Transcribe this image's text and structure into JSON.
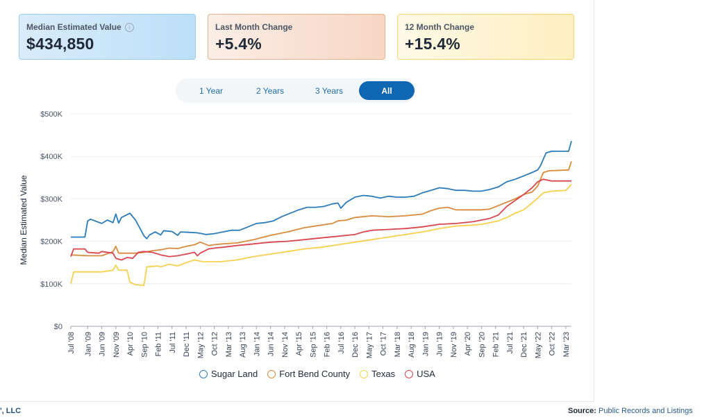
{
  "cards": [
    {
      "label": "Median Estimated Value",
      "value": "$434,850",
      "info_icon": "info-icon"
    },
    {
      "label": "Last Month Change",
      "value": "+5.4%"
    },
    {
      "label": "12 Month Change",
      "value": "+15.4%"
    }
  ],
  "range_buttons": [
    {
      "label": "1 Year",
      "active": false
    },
    {
      "label": "2 Years",
      "active": false
    },
    {
      "label": "3 Years",
      "active": false
    },
    {
      "label": "All",
      "active": true
    }
  ],
  "footer": {
    "left": "', LLC",
    "source_label": "Source:",
    "source_value": "Public Records and Listings"
  },
  "colors": {
    "sugar_land": "#2b7bb9",
    "fort_bend": "#d98a3d",
    "texas": "#f5d04f",
    "usa": "#d9454f",
    "active_button": "#0f66b3"
  },
  "chart_data": {
    "type": "line",
    "ylabel": "Median Estimated Value",
    "xlabel": "",
    "ylim": [
      0,
      500000
    ],
    "y_ticks": [
      {
        "value": 0,
        "label": "$0"
      },
      {
        "value": 100000,
        "label": "$100K"
      },
      {
        "value": 200000,
        "label": "$200K"
      },
      {
        "value": 300000,
        "label": "$300K"
      },
      {
        "value": 400000,
        "label": "$400K"
      },
      {
        "value": 500000,
        "label": "$500K"
      }
    ],
    "x_start": "2008-07",
    "x_end": "2023-05",
    "x_ticks": [
      "Jul '08",
      "Jan '09",
      "Jun '09",
      "Nov '09",
      "Apr '10",
      "Sep '10",
      "Feb '11",
      "Jul '11",
      "Dec '11",
      "May '12",
      "Oct '12",
      "Mar '13",
      "Aug '13",
      "Jan '14",
      "Jun '14",
      "Nov '14",
      "Apr '15",
      "Sep '15",
      "Feb '16",
      "Jul '16",
      "Dec '16",
      "May '17",
      "Oct '17",
      "Mar '18",
      "Aug '18",
      "Jan '19",
      "Jun '19",
      "Nov '19",
      "Apr '20",
      "Sep '20",
      "Feb '21",
      "Jul '21",
      "Dec '21",
      "May '22",
      "Oct '22",
      "Mar '23"
    ],
    "series": [
      {
        "name": "Sugar Land",
        "color": "#2b7bb9",
        "points": [
          [
            "2008-07",
            210000
          ],
          [
            "2008-12",
            210000
          ],
          [
            "2009-01",
            248000
          ],
          [
            "2009-02",
            252000
          ],
          [
            "2009-06",
            242000
          ],
          [
            "2009-08",
            250000
          ],
          [
            "2009-10",
            244000
          ],
          [
            "2009-11",
            264000
          ],
          [
            "2009-12",
            243000
          ],
          [
            "2010-01",
            256000
          ],
          [
            "2010-04",
            266000
          ],
          [
            "2010-06",
            250000
          ],
          [
            "2010-09",
            213000
          ],
          [
            "2010-10",
            206000
          ],
          [
            "2010-11",
            215000
          ],
          [
            "2011-01",
            222000
          ],
          [
            "2011-03",
            215000
          ],
          [
            "2011-04",
            225000
          ],
          [
            "2011-07",
            223000
          ],
          [
            "2011-09",
            214000
          ],
          [
            "2011-10",
            222000
          ],
          [
            "2012-01",
            221000
          ],
          [
            "2012-04",
            220000
          ],
          [
            "2012-07",
            216000
          ],
          [
            "2012-10",
            218000
          ],
          [
            "2013-01",
            222000
          ],
          [
            "2013-04",
            226000
          ],
          [
            "2013-07",
            226000
          ],
          [
            "2013-10",
            234000
          ],
          [
            "2014-01",
            242000
          ],
          [
            "2014-04",
            244000
          ],
          [
            "2014-07",
            248000
          ],
          [
            "2014-10",
            258000
          ],
          [
            "2015-01",
            266000
          ],
          [
            "2015-04",
            274000
          ],
          [
            "2015-07",
            280000
          ],
          [
            "2015-10",
            280000
          ],
          [
            "2016-01",
            282000
          ],
          [
            "2016-04",
            288000
          ],
          [
            "2016-06",
            290000
          ],
          [
            "2016-07",
            278000
          ],
          [
            "2016-09",
            292000
          ],
          [
            "2016-12",
            304000
          ],
          [
            "2017-03",
            308000
          ],
          [
            "2017-06",
            306000
          ],
          [
            "2017-09",
            302000
          ],
          [
            "2017-12",
            306000
          ],
          [
            "2018-03",
            304000
          ],
          [
            "2018-06",
            304000
          ],
          [
            "2018-09",
            306000
          ],
          [
            "2018-12",
            314000
          ],
          [
            "2019-03",
            320000
          ],
          [
            "2019-06",
            326000
          ],
          [
            "2019-09",
            324000
          ],
          [
            "2019-12",
            320000
          ],
          [
            "2020-03",
            320000
          ],
          [
            "2020-06",
            318000
          ],
          [
            "2020-09",
            318000
          ],
          [
            "2020-12",
            322000
          ],
          [
            "2021-03",
            328000
          ],
          [
            "2021-06",
            340000
          ],
          [
            "2021-09",
            346000
          ],
          [
            "2021-12",
            354000
          ],
          [
            "2022-03",
            362000
          ],
          [
            "2022-05",
            368000
          ],
          [
            "2022-06",
            378000
          ],
          [
            "2022-08",
            408000
          ],
          [
            "2022-10",
            412000
          ],
          [
            "2023-04",
            412000
          ],
          [
            "2023-05",
            436000
          ]
        ]
      },
      {
        "name": "Fort Bend County",
        "color": "#d98a3d",
        "points": [
          [
            "2008-07",
            168000
          ],
          [
            "2009-01",
            166000
          ],
          [
            "2009-06",
            166000
          ],
          [
            "2009-10",
            176000
          ],
          [
            "2009-11",
            188000
          ],
          [
            "2009-12",
            172000
          ],
          [
            "2010-03",
            172000
          ],
          [
            "2010-06",
            172000
          ],
          [
            "2010-09",
            174000
          ],
          [
            "2010-12",
            178000
          ],
          [
            "2011-03",
            180000
          ],
          [
            "2011-06",
            184000
          ],
          [
            "2011-09",
            183000
          ],
          [
            "2011-12",
            188000
          ],
          [
            "2012-03",
            192000
          ],
          [
            "2012-05",
            198000
          ],
          [
            "2012-08",
            190000
          ],
          [
            "2012-10",
            192000
          ],
          [
            "2013-01",
            194000
          ],
          [
            "2013-06",
            196000
          ],
          [
            "2013-12",
            204000
          ],
          [
            "2014-06",
            214000
          ],
          [
            "2014-12",
            222000
          ],
          [
            "2015-06",
            232000
          ],
          [
            "2015-12",
            238000
          ],
          [
            "2016-04",
            242000
          ],
          [
            "2016-06",
            248000
          ],
          [
            "2016-09",
            250000
          ],
          [
            "2016-12",
            256000
          ],
          [
            "2017-06",
            260000
          ],
          [
            "2017-12",
            258000
          ],
          [
            "2018-06",
            260000
          ],
          [
            "2018-12",
            264000
          ],
          [
            "2019-03",
            272000
          ],
          [
            "2019-06",
            278000
          ],
          [
            "2019-09",
            280000
          ],
          [
            "2019-12",
            274000
          ],
          [
            "2020-06",
            274000
          ],
          [
            "2020-09",
            274000
          ],
          [
            "2020-12",
            276000
          ],
          [
            "2021-03",
            284000
          ],
          [
            "2021-06",
            292000
          ],
          [
            "2021-09",
            300000
          ],
          [
            "2021-12",
            310000
          ],
          [
            "2022-03",
            316000
          ],
          [
            "2022-05",
            330000
          ],
          [
            "2022-07",
            362000
          ],
          [
            "2022-09",
            366000
          ],
          [
            "2023-04",
            368000
          ],
          [
            "2023-05",
            388000
          ]
        ]
      },
      {
        "name": "Texas",
        "color": "#f5d04f",
        "points": [
          [
            "2008-07",
            100000
          ],
          [
            "2008-08",
            128000
          ],
          [
            "2009-01",
            128000
          ],
          [
            "2009-06",
            128000
          ],
          [
            "2009-10",
            132000
          ],
          [
            "2009-11",
            144000
          ],
          [
            "2009-12",
            132000
          ],
          [
            "2010-03",
            132000
          ],
          [
            "2010-04",
            104000
          ],
          [
            "2010-06",
            98000
          ],
          [
            "2010-09",
            96000
          ],
          [
            "2010-10",
            140000
          ],
          [
            "2011-02",
            142000
          ],
          [
            "2011-03",
            140000
          ],
          [
            "2011-06",
            146000
          ],
          [
            "2011-09",
            142000
          ],
          [
            "2011-12",
            150000
          ],
          [
            "2012-03",
            156000
          ],
          [
            "2012-06",
            152000
          ],
          [
            "2012-09",
            152000
          ],
          [
            "2012-12",
            152000
          ],
          [
            "2013-06",
            156000
          ],
          [
            "2013-12",
            164000
          ],
          [
            "2014-06",
            170000
          ],
          [
            "2014-12",
            176000
          ],
          [
            "2015-06",
            182000
          ],
          [
            "2015-12",
            186000
          ],
          [
            "2016-06",
            192000
          ],
          [
            "2016-12",
            198000
          ],
          [
            "2017-06",
            204000
          ],
          [
            "2017-12",
            210000
          ],
          [
            "2018-06",
            216000
          ],
          [
            "2018-12",
            222000
          ],
          [
            "2019-06",
            230000
          ],
          [
            "2019-12",
            236000
          ],
          [
            "2020-06",
            238000
          ],
          [
            "2020-09",
            240000
          ],
          [
            "2020-12",
            244000
          ],
          [
            "2021-03",
            248000
          ],
          [
            "2021-06",
            256000
          ],
          [
            "2021-09",
            266000
          ],
          [
            "2021-12",
            274000
          ],
          [
            "2022-03",
            290000
          ],
          [
            "2022-05",
            302000
          ],
          [
            "2022-07",
            314000
          ],
          [
            "2022-10",
            318000
          ],
          [
            "2023-03",
            320000
          ],
          [
            "2023-05",
            334000
          ]
        ]
      },
      {
        "name": "USA",
        "color": "#d9454f",
        "points": [
          [
            "2008-07",
            164000
          ],
          [
            "2008-08",
            182000
          ],
          [
            "2008-12",
            182000
          ],
          [
            "2009-01",
            174000
          ],
          [
            "2009-05",
            172000
          ],
          [
            "2009-06",
            176000
          ],
          [
            "2009-10",
            172000
          ],
          [
            "2009-11",
            160000
          ],
          [
            "2010-01",
            156000
          ],
          [
            "2010-03",
            162000
          ],
          [
            "2010-05",
            160000
          ],
          [
            "2010-07",
            174000
          ],
          [
            "2010-09",
            176000
          ],
          [
            "2010-12",
            174000
          ],
          [
            "2011-03",
            168000
          ],
          [
            "2011-06",
            164000
          ],
          [
            "2011-09",
            166000
          ],
          [
            "2011-12",
            170000
          ],
          [
            "2012-03",
            174000
          ],
          [
            "2012-04",
            166000
          ],
          [
            "2012-05",
            172000
          ],
          [
            "2012-08",
            182000
          ],
          [
            "2012-10",
            184000
          ],
          [
            "2013-01",
            186000
          ],
          [
            "2013-06",
            190000
          ],
          [
            "2013-12",
            194000
          ],
          [
            "2014-06",
            198000
          ],
          [
            "2014-12",
            200000
          ],
          [
            "2015-06",
            204000
          ],
          [
            "2015-12",
            208000
          ],
          [
            "2016-06",
            212000
          ],
          [
            "2016-12",
            216000
          ],
          [
            "2017-03",
            222000
          ],
          [
            "2017-06",
            226000
          ],
          [
            "2017-12",
            228000
          ],
          [
            "2018-06",
            230000
          ],
          [
            "2018-12",
            234000
          ],
          [
            "2019-06",
            240000
          ],
          [
            "2019-12",
            242000
          ],
          [
            "2020-06",
            246000
          ],
          [
            "2020-09",
            250000
          ],
          [
            "2020-12",
            254000
          ],
          [
            "2021-03",
            262000
          ],
          [
            "2021-06",
            282000
          ],
          [
            "2021-09",
            296000
          ],
          [
            "2021-12",
            310000
          ],
          [
            "2022-03",
            326000
          ],
          [
            "2022-05",
            340000
          ],
          [
            "2022-07",
            346000
          ],
          [
            "2022-10",
            342000
          ],
          [
            "2023-02",
            342000
          ],
          [
            "2023-05",
            342000
          ]
        ]
      }
    ]
  }
}
